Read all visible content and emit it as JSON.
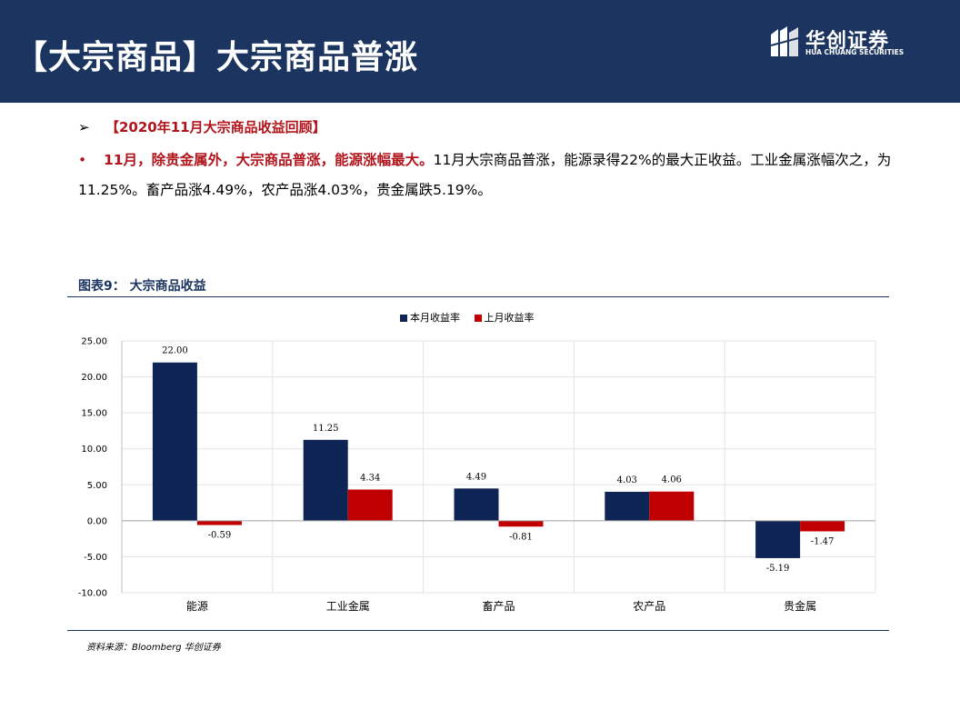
{
  "header": {
    "title": "【大宗商品】大宗商品普涨",
    "logo_cn": "华创证券",
    "logo_en": "HUA CHUANG SECURITIES"
  },
  "content": {
    "arrow": "➢",
    "heading": "【2020年11月大宗商品收益回顾】",
    "bullet_dot": "•",
    "bold_lead": "11月，除贵金属外，大宗商品普涨，能源涨幅最大。",
    "body": "11月大宗商品普涨，能源录得22%的最大正收益。工业金属涨幅次之，为11.25%。畜产品涨4.49%，农产品涨4.03%，贵金属跌5.19%。"
  },
  "figure": {
    "title": "图表9：  大宗商品收益",
    "source": "资料来源：Bloomberg  华创证券"
  },
  "colors": {
    "series1": "#0d2454",
    "series2": "#c00000",
    "header_bg": "#1c3560"
  },
  "chart_data": {
    "type": "bar",
    "categories": [
      "能源",
      "工业金属",
      "畜产品",
      "农产品",
      "贵金属"
    ],
    "series": [
      {
        "name": "本月收益率",
        "values": [
          22.0,
          11.25,
          4.49,
          4.03,
          -5.19
        ],
        "labels": [
          "22.00",
          "11.25",
          "4.49",
          "4.03",
          "-5.19"
        ]
      },
      {
        "name": "上月收益率",
        "values": [
          -0.59,
          4.34,
          -0.81,
          4.06,
          -1.47
        ],
        "labels": [
          "-0.59",
          "4.34",
          "-0.81",
          "4.06",
          "-1.47"
        ]
      }
    ],
    "yticks": [
      "25.00",
      "20.00",
      "15.00",
      "10.00",
      "5.00",
      "0.00",
      "-5.00",
      "-10.00"
    ],
    "ylim": [
      -10,
      25
    ],
    "legend": "top-center",
    "grid": true
  }
}
